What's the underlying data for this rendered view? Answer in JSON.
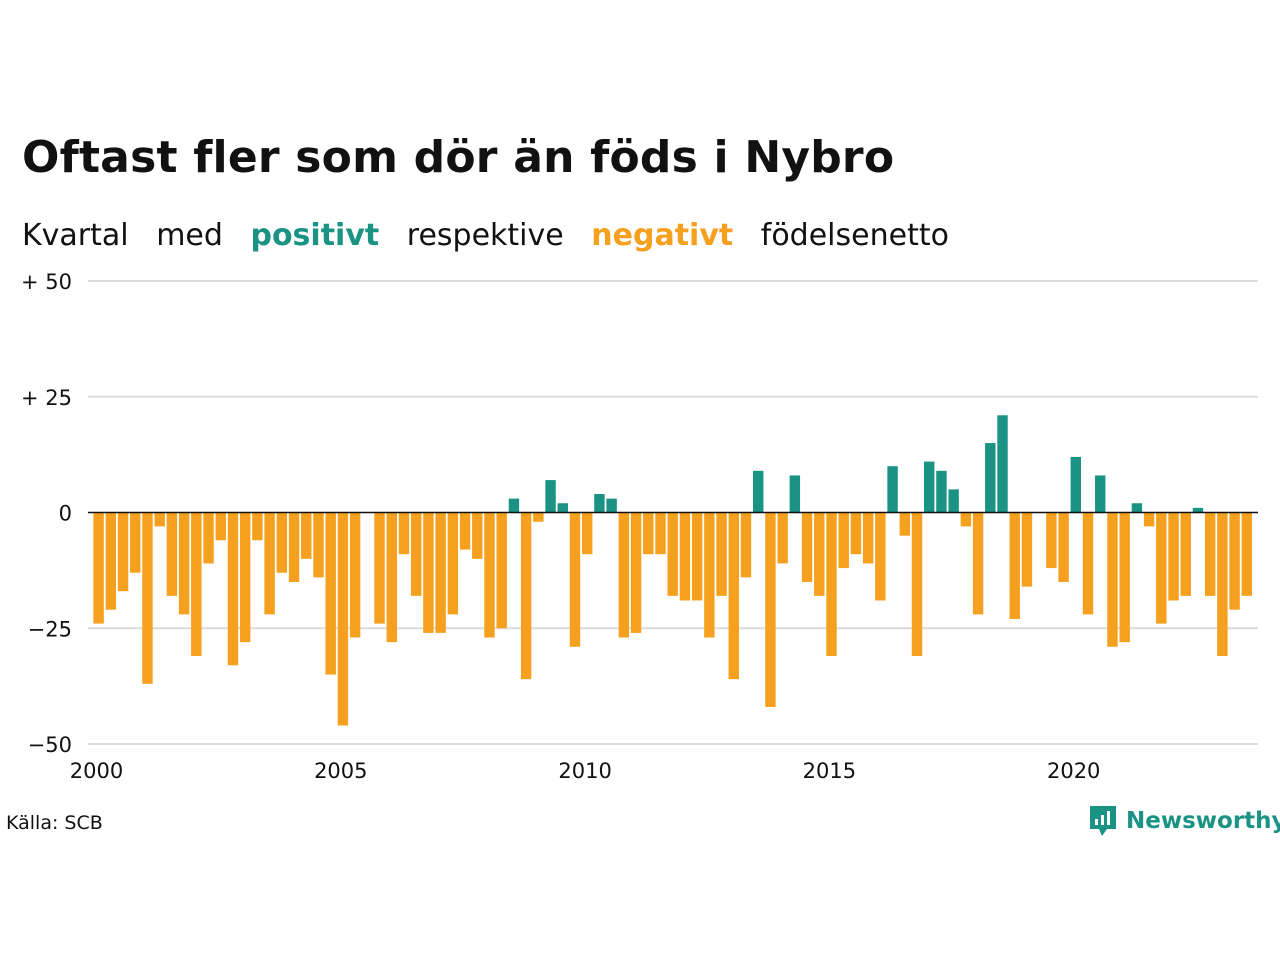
{
  "title": "Oftast fler som dör än föds i Nybro",
  "subtitle": {
    "part1": "Kvartal",
    "part2": "med",
    "positive_word": "positivt",
    "part3": "respektive",
    "negative_word": "negativt",
    "part4": "födelsenetto"
  },
  "colors": {
    "positive": "#1a9385",
    "negative": "#f5a01e"
  },
  "source": "Källa: SCB",
  "logo_text": "Newsworthy",
  "logo_icon": "newsworthy-logo-icon",
  "chart_data": {
    "type": "bar",
    "title": "Oftast fler som dör än föds i Nybro",
    "ylim": [
      -50,
      50
    ],
    "y_ticks": [
      {
        "value": 50,
        "label": "+ 50"
      },
      {
        "value": 25,
        "label": "+ 25"
      },
      {
        "value": 0,
        "label": "0"
      },
      {
        "value": -25,
        "label": "−25"
      },
      {
        "value": -50,
        "label": "−50"
      }
    ],
    "x_range": [
      2000,
      2024
    ],
    "x_ticks": [
      {
        "value": 2000,
        "label": "2000"
      },
      {
        "value": 2005,
        "label": "2005"
      },
      {
        "value": 2010,
        "label": "2010"
      },
      {
        "value": 2015,
        "label": "2015"
      },
      {
        "value": 2020,
        "label": "2020"
      }
    ],
    "grid": true,
    "start_year": 2000,
    "values": [
      -24,
      -21,
      -17,
      -13,
      -37,
      -3,
      -18,
      -22,
      -31,
      -11,
      -6,
      -33,
      -28,
      -6,
      -22,
      -13,
      -15,
      -10,
      -14,
      -35,
      -46,
      -27,
      0,
      -24,
      -28,
      -9,
      -18,
      -26,
      -26,
      -22,
      -8,
      -10,
      -27,
      -25,
      3,
      -36,
      -2,
      7,
      2,
      -29,
      -9,
      4,
      3,
      -27,
      -26,
      -9,
      -9,
      -18,
      -19,
      -19,
      -27,
      -18,
      -36,
      -14,
      9,
      -42,
      -11,
      8,
      -15,
      -18,
      -31,
      -12,
      -9,
      -11,
      -19,
      10,
      -5,
      -31,
      11,
      9,
      5,
      -3,
      -22,
      15,
      21,
      -23,
      -16,
      0,
      -12,
      -15,
      12,
      -22,
      8,
      -29,
      -28,
      2,
      -3,
      -24,
      -19,
      -18,
      1,
      -18,
      -31,
      -21,
      -18
    ]
  }
}
